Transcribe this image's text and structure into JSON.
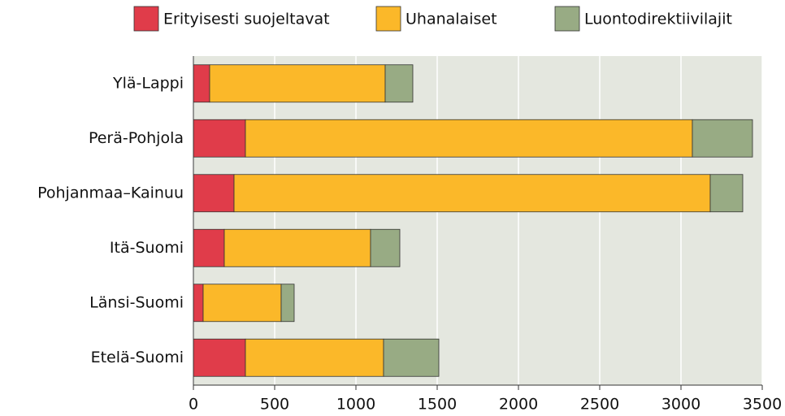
{
  "chart_data": {
    "type": "stacked-barh",
    "categories": [
      "Ylä-Lappi",
      "Perä-Pohjola",
      "Pohjanmaa–Kainuu",
      "Itä-Suomi",
      "Länsi-Suomi",
      "Etelä-Suomi"
    ],
    "series": [
      {
        "name": "Erityisesti suojeltavat",
        "color": "#e03c4a",
        "values": [
          100,
          320,
          250,
          190,
          60,
          320
        ]
      },
      {
        "name": "Uhanalaiset",
        "color": "#fbb829",
        "values": [
          1080,
          2750,
          2930,
          900,
          480,
          850
        ]
      },
      {
        "name": "Luontodirektiivilajit",
        "color": "#98ab84",
        "values": [
          170,
          370,
          200,
          180,
          80,
          340
        ]
      }
    ],
    "xlim": [
      0,
      3500
    ],
    "xticks": [
      0,
      500,
      1000,
      1500,
      2000,
      2500,
      3000,
      3500
    ],
    "grid": true
  }
}
